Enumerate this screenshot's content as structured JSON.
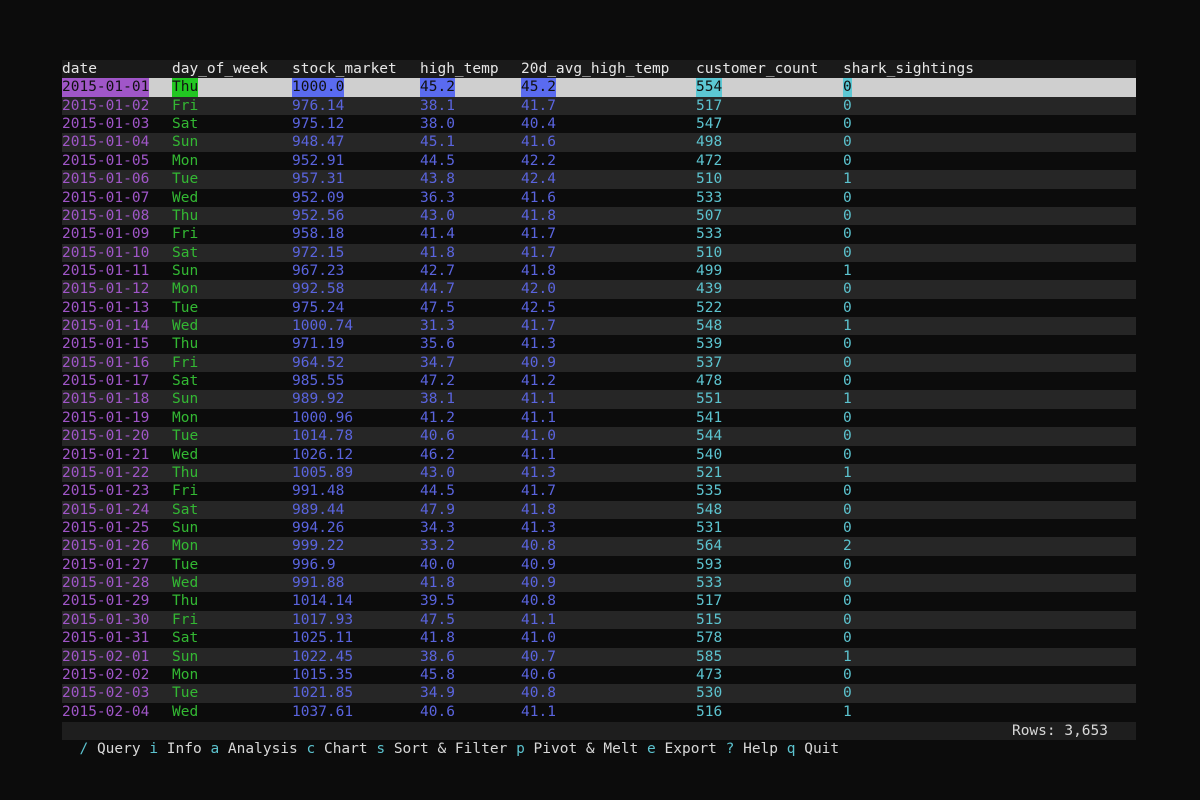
{
  "columns": [
    "date",
    "day_of_week",
    "stock_market",
    "high_temp",
    "20d_avg_high_temp",
    "customer_count",
    "shark_sightings"
  ],
  "rows": [
    [
      "2015-01-01",
      "Thu",
      "1000.0",
      "45.2",
      "45.2",
      "554",
      "0"
    ],
    [
      "2015-01-02",
      "Fri",
      "976.14",
      "38.1",
      "41.7",
      "517",
      "0"
    ],
    [
      "2015-01-03",
      "Sat",
      "975.12",
      "38.0",
      "40.4",
      "547",
      "0"
    ],
    [
      "2015-01-04",
      "Sun",
      "948.47",
      "45.1",
      "41.6",
      "498",
      "0"
    ],
    [
      "2015-01-05",
      "Mon",
      "952.91",
      "44.5",
      "42.2",
      "472",
      "0"
    ],
    [
      "2015-01-06",
      "Tue",
      "957.31",
      "43.8",
      "42.4",
      "510",
      "1"
    ],
    [
      "2015-01-07",
      "Wed",
      "952.09",
      "36.3",
      "41.6",
      "533",
      "0"
    ],
    [
      "2015-01-08",
      "Thu",
      "952.56",
      "43.0",
      "41.8",
      "507",
      "0"
    ],
    [
      "2015-01-09",
      "Fri",
      "958.18",
      "41.4",
      "41.7",
      "533",
      "0"
    ],
    [
      "2015-01-10",
      "Sat",
      "972.15",
      "41.8",
      "41.7",
      "510",
      "0"
    ],
    [
      "2015-01-11",
      "Sun",
      "967.23",
      "42.7",
      "41.8",
      "499",
      "1"
    ],
    [
      "2015-01-12",
      "Mon",
      "992.58",
      "44.7",
      "42.0",
      "439",
      "0"
    ],
    [
      "2015-01-13",
      "Tue",
      "975.24",
      "47.5",
      "42.5",
      "522",
      "0"
    ],
    [
      "2015-01-14",
      "Wed",
      "1000.74",
      "31.3",
      "41.7",
      "548",
      "1"
    ],
    [
      "2015-01-15",
      "Thu",
      "971.19",
      "35.6",
      "41.3",
      "539",
      "0"
    ],
    [
      "2015-01-16",
      "Fri",
      "964.52",
      "34.7",
      "40.9",
      "537",
      "0"
    ],
    [
      "2015-01-17",
      "Sat",
      "985.55",
      "47.2",
      "41.2",
      "478",
      "0"
    ],
    [
      "2015-01-18",
      "Sun",
      "989.92",
      "38.1",
      "41.1",
      "551",
      "1"
    ],
    [
      "2015-01-19",
      "Mon",
      "1000.96",
      "41.2",
      "41.1",
      "541",
      "0"
    ],
    [
      "2015-01-20",
      "Tue",
      "1014.78",
      "40.6",
      "41.0",
      "544",
      "0"
    ],
    [
      "2015-01-21",
      "Wed",
      "1026.12",
      "46.2",
      "41.1",
      "540",
      "0"
    ],
    [
      "2015-01-22",
      "Thu",
      "1005.89",
      "43.0",
      "41.3",
      "521",
      "1"
    ],
    [
      "2015-01-23",
      "Fri",
      "991.48",
      "44.5",
      "41.7",
      "535",
      "0"
    ],
    [
      "2015-01-24",
      "Sat",
      "989.44",
      "47.9",
      "41.8",
      "548",
      "0"
    ],
    [
      "2015-01-25",
      "Sun",
      "994.26",
      "34.3",
      "41.3",
      "531",
      "0"
    ],
    [
      "2015-01-26",
      "Mon",
      "999.22",
      "33.2",
      "40.8",
      "564",
      "2"
    ],
    [
      "2015-01-27",
      "Tue",
      "996.9",
      "40.0",
      "40.9",
      "593",
      "0"
    ],
    [
      "2015-01-28",
      "Wed",
      "991.88",
      "41.8",
      "40.9",
      "533",
      "0"
    ],
    [
      "2015-01-29",
      "Thu",
      "1014.14",
      "39.5",
      "40.8",
      "517",
      "0"
    ],
    [
      "2015-01-30",
      "Fri",
      "1017.93",
      "47.5",
      "41.1",
      "515",
      "0"
    ],
    [
      "2015-01-31",
      "Sat",
      "1025.11",
      "41.8",
      "41.0",
      "578",
      "0"
    ],
    [
      "2015-02-01",
      "Sun",
      "1022.45",
      "38.6",
      "40.7",
      "585",
      "1"
    ],
    [
      "2015-02-02",
      "Mon",
      "1015.35",
      "45.8",
      "40.6",
      "473",
      "0"
    ],
    [
      "2015-02-03",
      "Tue",
      "1021.85",
      "34.9",
      "40.8",
      "530",
      "0"
    ],
    [
      "2015-02-04",
      "Wed",
      "1037.61",
      "40.6",
      "41.1",
      "516",
      "1"
    ]
  ],
  "selected_row": 0,
  "footer": {
    "commands": [
      {
        "key": "/",
        "label": "Query"
      },
      {
        "key": "i",
        "label": "Info"
      },
      {
        "key": "a",
        "label": "Analysis"
      },
      {
        "key": "c",
        "label": "Chart"
      },
      {
        "key": "s",
        "label": "Sort & Filter"
      },
      {
        "key": "p",
        "label": "Pivot & Melt"
      },
      {
        "key": "e",
        "label": "Export"
      },
      {
        "key": "?",
        "label": "Help"
      },
      {
        "key": "q",
        "label": "Quit"
      }
    ],
    "rows_label": "Rows: 3,653"
  },
  "colors": {
    "date": "#a056c8",
    "day_of_week": "#33b833",
    "numeric": "#5a64de",
    "count": "#5cc3cf",
    "selected_bg": "#cfcfcf"
  }
}
